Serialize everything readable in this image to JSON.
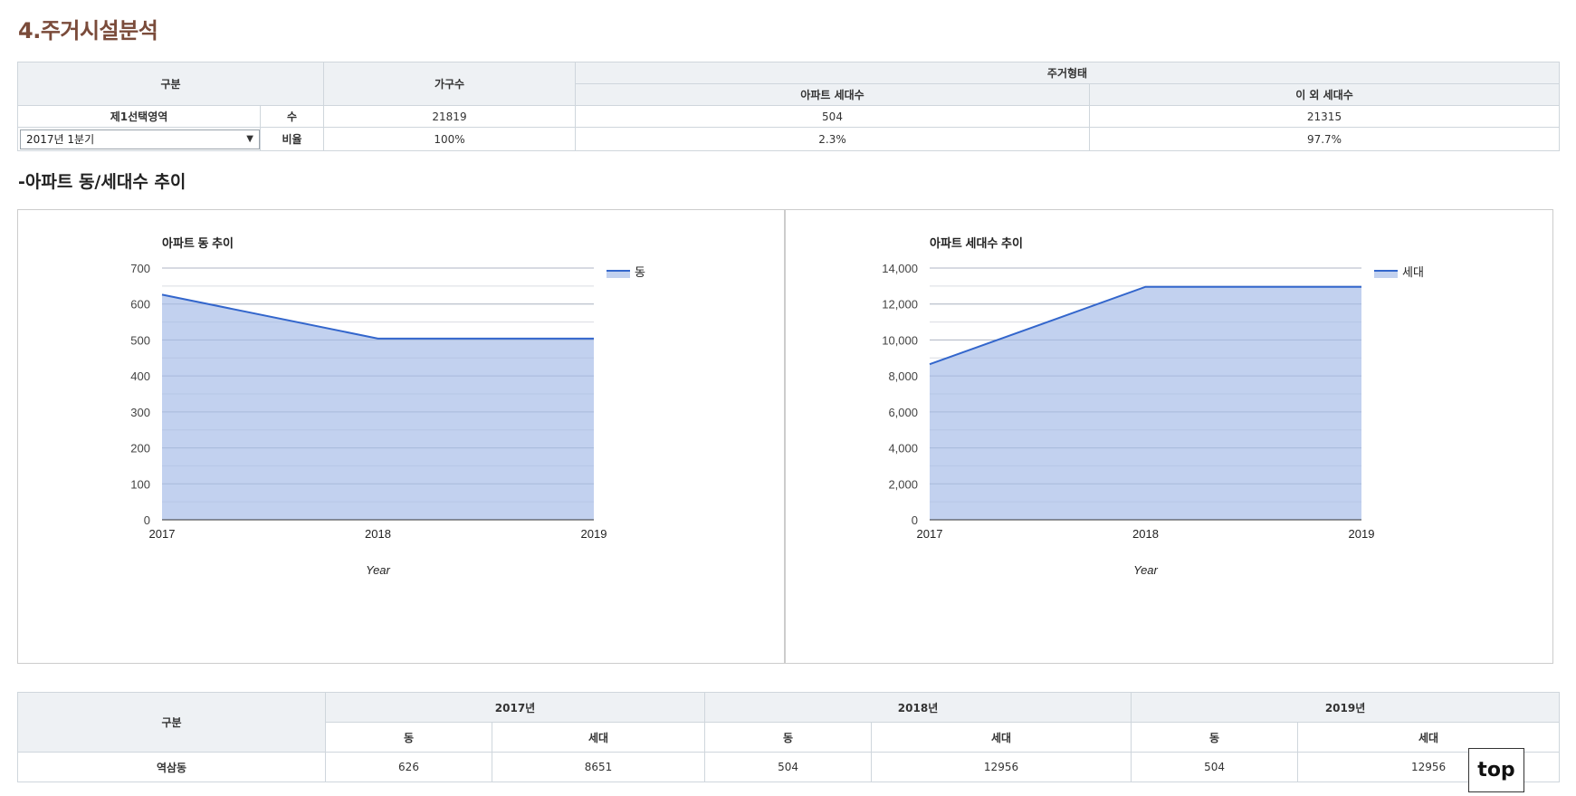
{
  "page_title": "4.주거시설분석",
  "summary": {
    "header": {
      "category": "구분",
      "households": "가구수",
      "housing_type": "주거형태",
      "apt_units": "아파트 세대수",
      "other_units": "이 외 세대수"
    },
    "area_label": "제1선택영역",
    "period_select": {
      "selected": "2017년 1분기",
      "arrow": "▼"
    },
    "rows": [
      {
        "label": "수",
        "households": "21819",
        "apt_units": "504",
        "other_units": "21315"
      },
      {
        "label": "비율",
        "households": "100%",
        "apt_units": "2.3%",
        "other_units": "97.7%"
      }
    ]
  },
  "subsection_title": "-아파트 동/세대수 추이",
  "chart_data": [
    {
      "type": "area",
      "title": "아파트 동 추이",
      "x": [
        "2017",
        "2018",
        "2019"
      ],
      "xlabel": "Year",
      "ylabel": "",
      "ylim": [
        0,
        700
      ],
      "yticks": [
        "0",
        "100",
        "200",
        "300",
        "400",
        "500",
        "600",
        "700"
      ],
      "series": [
        {
          "name": "동",
          "values": [
            626,
            504,
            504
          ]
        }
      ],
      "legend": "right",
      "grid": true,
      "line_color": "#3366cc",
      "fill_color": "#c2d1ef"
    },
    {
      "type": "area",
      "title": "아파트 세대수 추이",
      "x": [
        "2017",
        "2018",
        "2019"
      ],
      "xlabel": "Year",
      "ylabel": "",
      "ylim": [
        0,
        14000
      ],
      "yticks": [
        "0",
        "2,000",
        "4,000",
        "6,000",
        "8,000",
        "10,000",
        "12,000",
        "14,000"
      ],
      "series": [
        {
          "name": "세대",
          "values": [
            8651,
            12956,
            12956
          ]
        }
      ],
      "legend": "right",
      "grid": true,
      "line_color": "#3366cc",
      "fill_color": "#c2d1ef"
    }
  ],
  "trend_table": {
    "category": "구분",
    "years": [
      "2017년",
      "2018년",
      "2019년"
    ],
    "sub_headers": [
      "동",
      "세대",
      "동",
      "세대",
      "동",
      "세대"
    ],
    "rows": [
      {
        "name": "역삼동",
        "values": [
          "626",
          "8651",
          "504",
          "12956",
          "504",
          "12956"
        ]
      }
    ]
  },
  "top_button": "top"
}
